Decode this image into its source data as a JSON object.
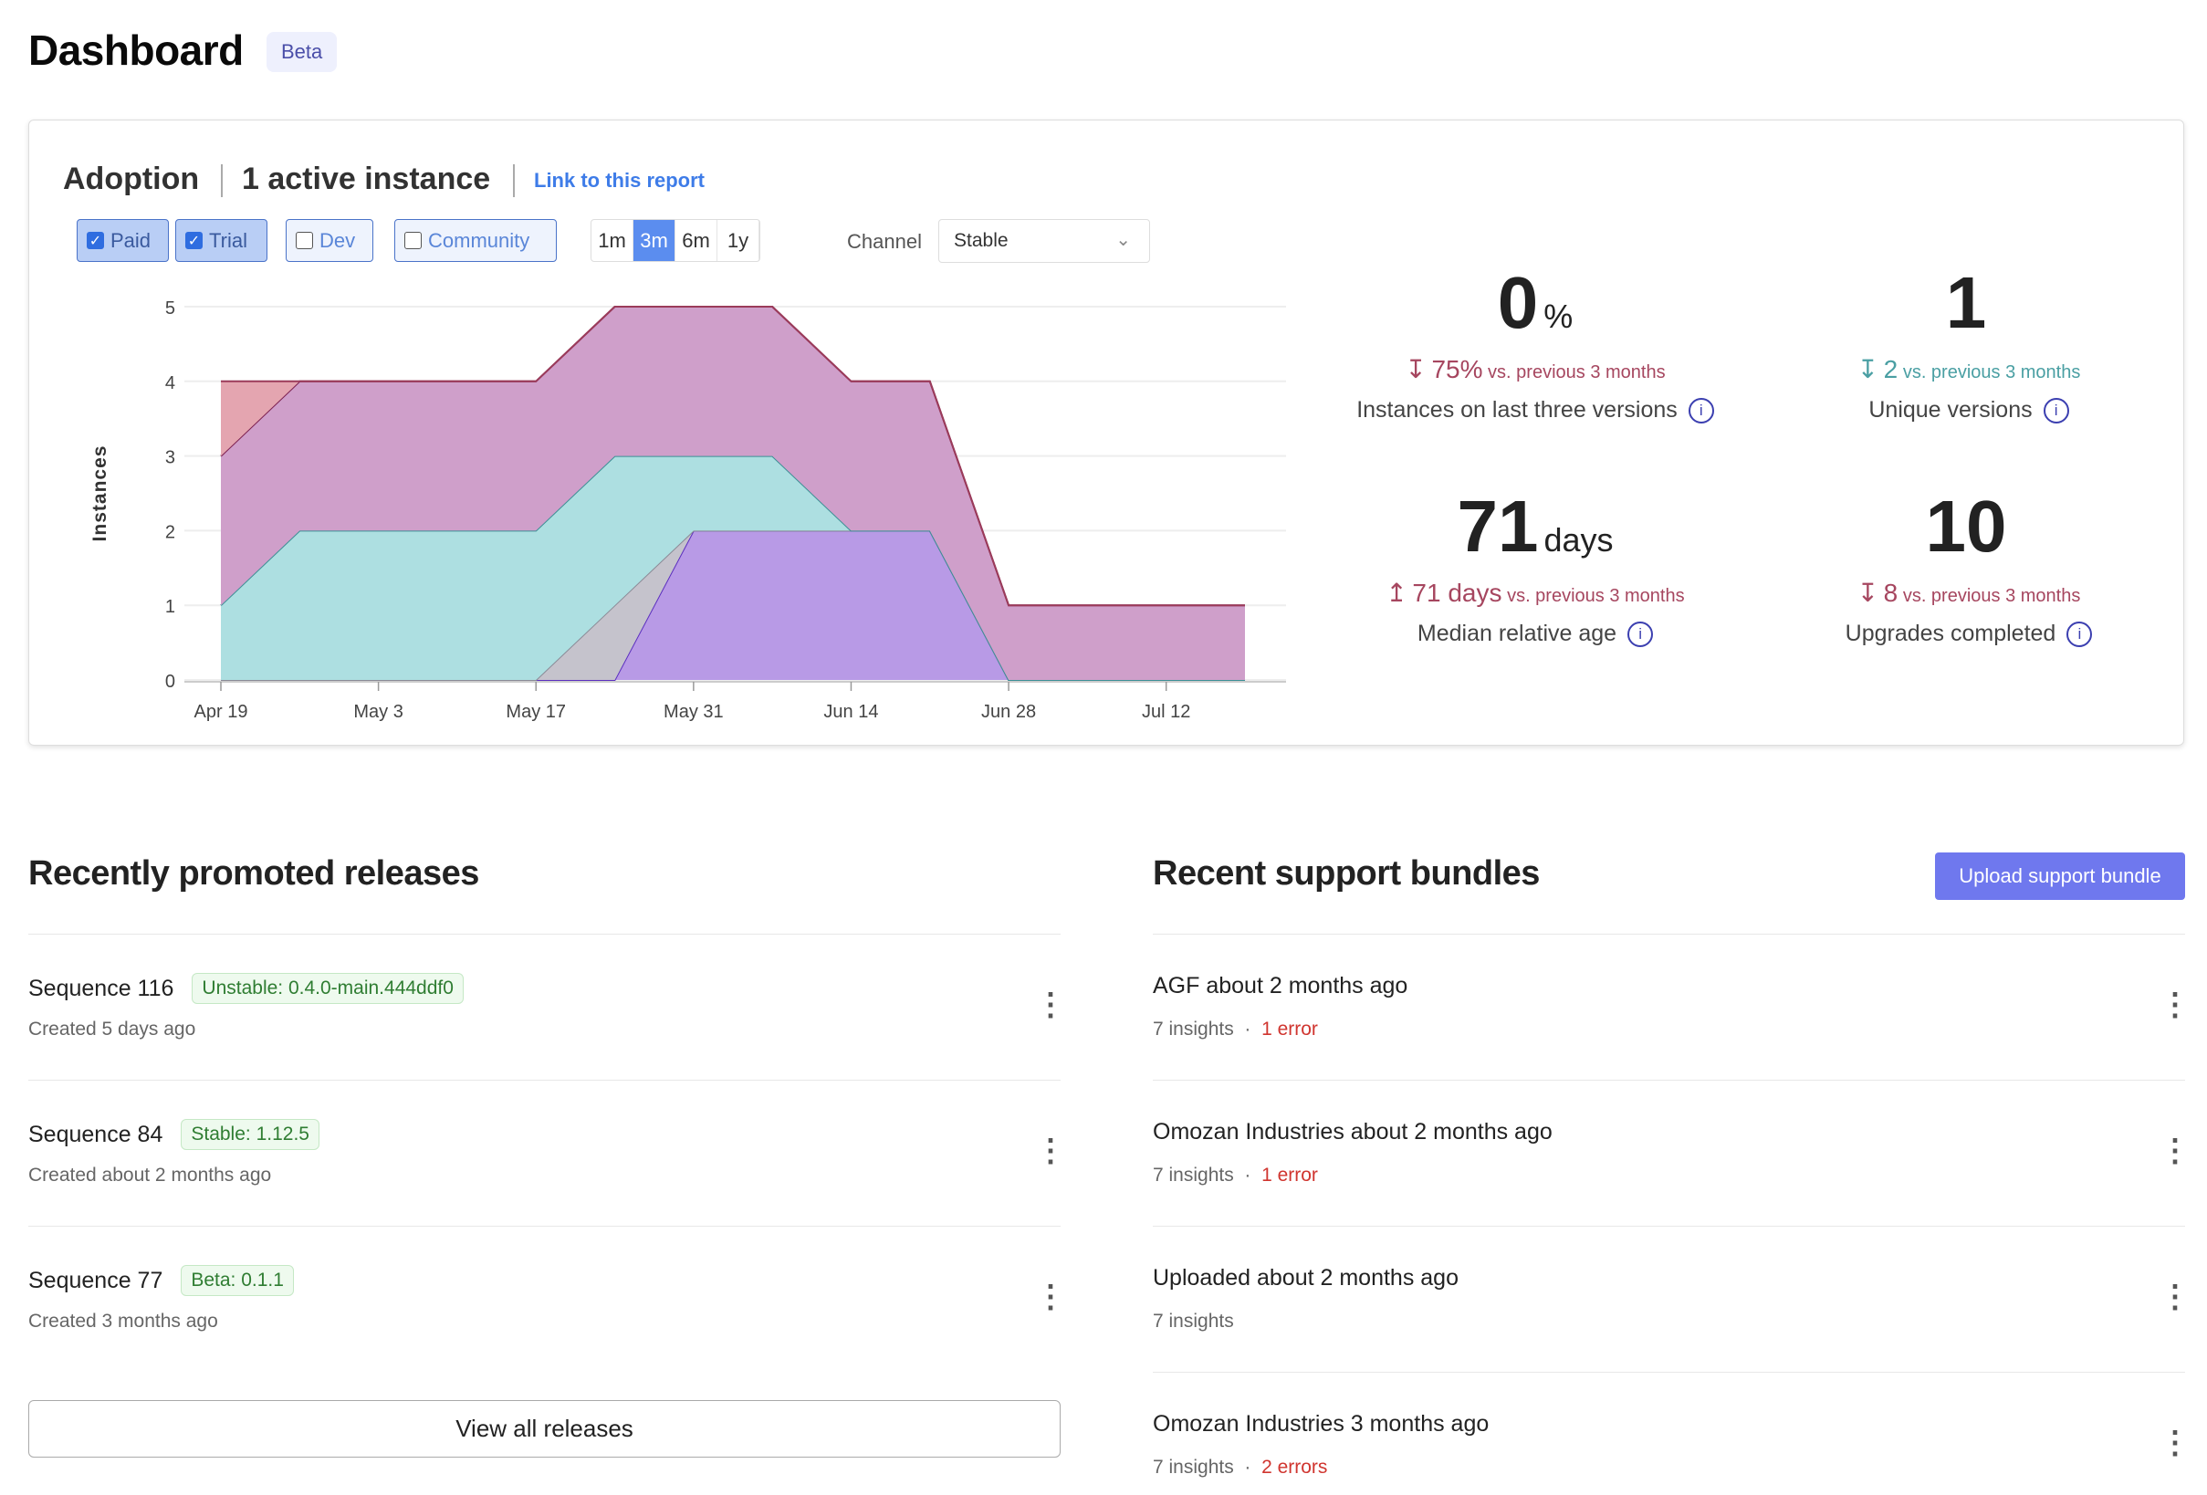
{
  "header": {
    "title": "Dashboard",
    "badge": "Beta"
  },
  "adoption": {
    "title": "Adoption",
    "active": "1 active instance",
    "link": "Link to this report",
    "filters": [
      {
        "label": "Paid",
        "checked": true
      },
      {
        "label": "Trial",
        "checked": true
      },
      {
        "label": "Dev",
        "checked": false
      },
      {
        "label": "Community",
        "checked": false
      }
    ],
    "ranges": [
      "1m",
      "3m",
      "6m",
      "1y"
    ],
    "selected_range": "3m",
    "channel_label": "Channel",
    "channel_value": "Stable"
  },
  "stats": [
    {
      "value": "0",
      "unit": "%",
      "delta": "75%",
      "delta_dir": "down",
      "delta_text": "vs. previous 3 months",
      "label": "Instances on last three versions",
      "color": "#a6465f"
    },
    {
      "value": "1",
      "unit": "",
      "delta": "2",
      "delta_dir": "down",
      "delta_text": "vs. previous 3 months",
      "label": "Unique versions",
      "color": "#4a9fa3"
    },
    {
      "value": "71",
      "unit": "days",
      "delta": "71 days",
      "delta_dir": "up",
      "delta_text": "vs. previous 3 months",
      "label": "Median relative age",
      "color": "#a6465f"
    },
    {
      "value": "10",
      "unit": "",
      "delta": "8",
      "delta_dir": "down",
      "delta_text": "vs. previous 3 months",
      "label": "Upgrades completed",
      "color": "#a6465f"
    }
  ],
  "chart_data": {
    "type": "area",
    "stacked": true,
    "ylabel": "Instances",
    "ylim": [
      0,
      5
    ],
    "yticks": [
      "0",
      "1",
      "2",
      "3",
      "4",
      "5"
    ],
    "grid": true,
    "x": [
      "Apr 19",
      "Apr 26",
      "May 3",
      "May 10",
      "May 17",
      "May 24",
      "May 31",
      "Jun 7",
      "Jun 14",
      "Jun 21",
      "Jun 28",
      "Jul 5",
      "Jul 12",
      "Jul 19"
    ],
    "xticks": [
      "Apr 19",
      "May 3",
      "May 17",
      "May 31",
      "Jun 14",
      "Jun 28",
      "Jul 12"
    ],
    "series": [
      {
        "values": [
          0,
          0,
          0,
          0,
          0,
          0,
          2,
          2,
          2,
          2,
          0,
          0,
          0,
          0
        ],
        "color": "#b89ae6",
        "stroke": "#5b2fbf"
      },
      {
        "values": [
          0,
          0,
          0,
          0,
          0,
          1,
          0,
          0,
          0,
          0,
          0,
          0,
          0,
          0
        ],
        "color": "#c5c3cc",
        "stroke": "#8a8a96"
      },
      {
        "values": [
          1,
          2,
          2,
          2,
          2,
          2,
          1,
          1,
          0,
          0,
          0,
          0,
          0,
          0
        ],
        "color": "#addfe1",
        "stroke": "#3c8f95"
      },
      {
        "values": [
          2,
          2,
          2,
          2,
          2,
          2,
          2,
          2,
          2,
          2,
          1,
          1,
          1,
          1
        ],
        "color": "#cf9fca",
        "stroke": "#7c2050"
      },
      {
        "values": [
          1,
          0,
          0,
          0,
          0,
          0,
          0,
          0,
          0,
          0,
          0,
          0,
          0,
          0
        ],
        "color": "#e4a5b0",
        "stroke": "#9b3b5a"
      }
    ]
  },
  "releases": {
    "title": "Recently promoted releases",
    "view_all": "View all releases",
    "items": [
      {
        "name": "Sequence 116",
        "tag": "Unstable: 0.4.0-main.444ddf0",
        "created": "Created 5 days ago"
      },
      {
        "name": "Sequence 84",
        "tag": "Stable: 1.12.5",
        "created": "Created about 2 months ago"
      },
      {
        "name": "Sequence 77",
        "tag": "Beta: 0.1.1",
        "created": "Created 3 months ago"
      }
    ]
  },
  "bundles": {
    "title": "Recent support bundles",
    "upload": "Upload support bundle",
    "items": [
      {
        "name": "AGF about 2 months ago",
        "insights": "7 insights",
        "errors": "1 error"
      },
      {
        "name": "Omozan Industries about 2 months ago",
        "insights": "7 insights",
        "errors": "1 error"
      },
      {
        "name": "Uploaded about 2 months ago",
        "insights": "7 insights",
        "errors": ""
      },
      {
        "name": "Omozan Industries 3 months ago",
        "insights": "7 insights",
        "errors": "2 errors"
      }
    ]
  }
}
